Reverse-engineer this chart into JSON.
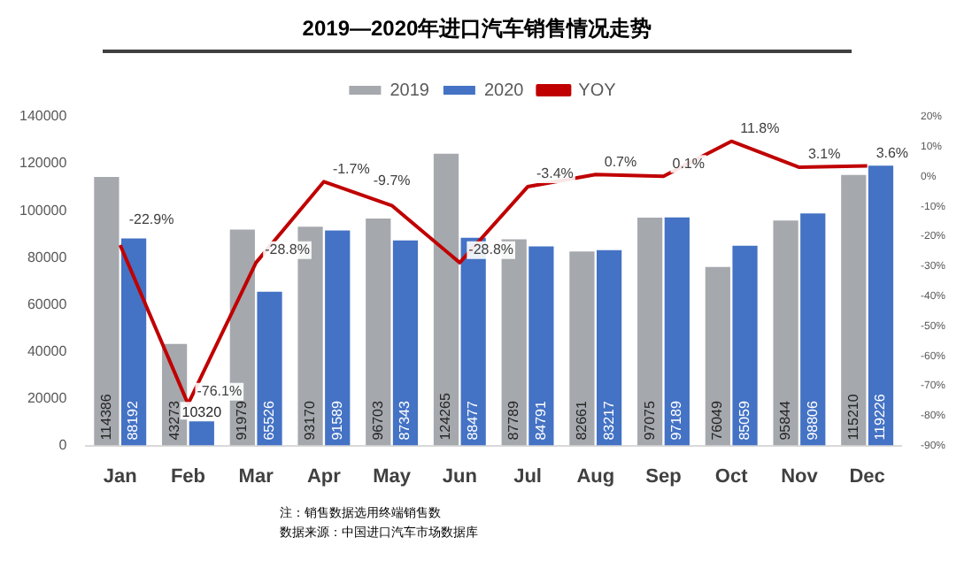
{
  "chart_data": {
    "type": "bar",
    "title": "2019—2020年进口汽车销售情况走势",
    "categories": [
      "Jan",
      "Feb",
      "Mar",
      "Apr",
      "May",
      "Jun",
      "Jul",
      "Aug",
      "Sep",
      "Oct",
      "Nov",
      "Dec"
    ],
    "series": [
      {
        "name": "2019",
        "color": "#a5a8ad",
        "values": [
          114386,
          43273,
          91979,
          93170,
          96703,
          124265,
          87789,
          82661,
          97075,
          76049,
          95844,
          115210
        ],
        "value_labels": [
          "114386",
          "43273",
          "91979",
          "93170",
          "96703",
          "124265",
          "87789",
          "82661",
          "97075",
          "76049",
          "95844",
          "115210"
        ]
      },
      {
        "name": "2020",
        "color": "#4472c4",
        "values": [
          88192,
          10320,
          65526,
          91589,
          87343,
          88477,
          84791,
          83217,
          97189,
          85059,
          98806,
          119226
        ],
        "value_labels": [
          "88192",
          "10320",
          "65526",
          "91589",
          "87343",
          "88477",
          "84791",
          "83217",
          "97189",
          "85059",
          "98806",
          "119226"
        ]
      },
      {
        "name": "YOY",
        "type": "line",
        "axis": "y2",
        "color": "#c00000",
        "values": [
          -22.9,
          -76.1,
          -28.8,
          -1.7,
          -9.7,
          -28.8,
          -3.4,
          0.7,
          0.1,
          11.8,
          3.1,
          3.6
        ],
        "value_labels": [
          "-22.9%",
          "-76.1%",
          "-28.8%",
          "-1.7%",
          "-9.7%",
          "-28.8%",
          "-3.4%",
          "0.7%",
          "0.1%",
          "11.8%",
          "3.1%",
          "3.6%"
        ]
      }
    ],
    "ylim": [
      0,
      140000
    ],
    "yticks": [
      0,
      20000,
      40000,
      60000,
      80000,
      100000,
      120000,
      140000
    ],
    "y2lim": [
      -90,
      20
    ],
    "y2ticks": [
      {
        "value": -90,
        "label": "-90%"
      },
      {
        "value": -80,
        "label": "-80%"
      },
      {
        "value": -70,
        "label": "-70%"
      },
      {
        "value": -60,
        "label": "-60%"
      },
      {
        "value": -50,
        "label": "-50%"
      },
      {
        "value": -40,
        "label": "-40%"
      },
      {
        "value": -30,
        "label": "-30%"
      },
      {
        "value": -20,
        "label": "-20%"
      },
      {
        "value": -10,
        "label": "-10%"
      },
      {
        "value": 0,
        "label": "0%"
      },
      {
        "value": 10,
        "label": "10%"
      },
      {
        "value": 20,
        "label": "20%"
      }
    ],
    "grid": false,
    "legend": "top",
    "marker": "none",
    "annotations": [
      "注：销售数据选用终端销售数",
      "数据来源：中国进口汽车市场数据库"
    ]
  }
}
